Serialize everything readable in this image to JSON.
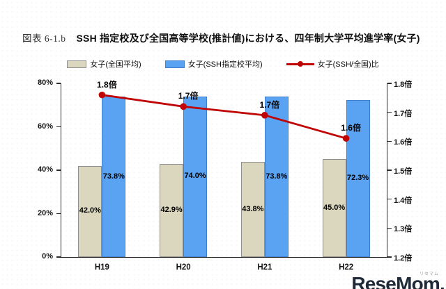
{
  "figure": {
    "label": "図表 6-1.b",
    "title": "SSH 指定校及び全国高等学校(推計値)における、四年制大学平均進学率(女子)"
  },
  "legend": [
    {
      "label": "女子(全国平均)",
      "marker": "bar",
      "color": "#DBD7BE",
      "border": "#8f8f8f"
    },
    {
      "label": "女子(SSH指定校平均)",
      "marker": "bar",
      "color": "#5AA2F2",
      "border": "#3F7FCC"
    },
    {
      "label": "女子(SSH/全国)比",
      "marker": "line",
      "color": "#C00404"
    }
  ],
  "chart_data": {
    "type": "bar",
    "subtype": "grouped bars + line on secondary axis",
    "title": "SSH 指定校及び全国高等学校(推計値)における、四年制大学平均進学率(女子)",
    "categories": [
      "H19",
      "H20",
      "H21",
      "H22"
    ],
    "series": [
      {
        "name": "女子(全国平均)",
        "type": "bar",
        "axis": "left",
        "color": "#DBD7BE",
        "border_color": "#8f8f8f",
        "values": [
          42.0,
          42.9,
          43.8,
          45.0
        ],
        "data_labels": [
          "42.0%",
          "42.9%",
          "43.8%",
          "45.0%"
        ]
      },
      {
        "name": "女子(SSH指定校平均)",
        "type": "bar",
        "axis": "left",
        "color": "#5AA2F2",
        "border_color": "#3F7FCC",
        "values": [
          73.8,
          74.0,
          73.8,
          72.3
        ],
        "data_labels": [
          "73.8%",
          "74.0%",
          "73.8%",
          "72.3%"
        ]
      },
      {
        "name": "女子(SSH/全国)比",
        "type": "line",
        "axis": "right",
        "color": "#C00404",
        "values": [
          1.76,
          1.72,
          1.69,
          1.61
        ],
        "data_labels": [
          "1.8倍",
          "1.7倍",
          "1.7倍",
          "1.6倍"
        ]
      }
    ],
    "left_axis": {
      "min": 0,
      "max": 80,
      "tick_labels": [
        "0%",
        "20%",
        "40%",
        "60%",
        "80%"
      ]
    },
    "right_axis": {
      "min": 1.2,
      "max": 1.8,
      "tick_labels": [
        "1.2倍",
        "1.3倍",
        "1.4倍",
        "1.5倍",
        "1.6倍",
        "1.7倍",
        "1.8倍"
      ]
    },
    "gridlines": false,
    "legend_position": "top"
  },
  "watermark": {
    "text": "ReseMom.",
    "ruby": "リセマム"
  }
}
